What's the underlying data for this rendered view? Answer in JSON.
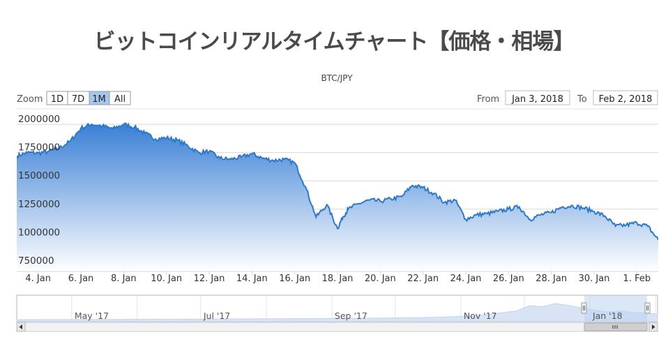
{
  "page_title": "ビットコインリアルタイムチャート【価格・相場】",
  "range_selector": {
    "zoom_label": "Zoom",
    "buttons": [
      {
        "label": "1D",
        "selected": false
      },
      {
        "label": "7D",
        "selected": false
      },
      {
        "label": "1M",
        "selected": true
      },
      {
        "label": "All",
        "selected": false
      }
    ],
    "from_label": "From",
    "from_value": "Jan 3, 2018",
    "to_label": "To",
    "to_value": "Feb 2, 2018"
  },
  "colors": {
    "line": "#2f78c8",
    "fill_top": "#3a7fd5",
    "fill_bottom": "#ffffff",
    "selected_button": "#a6c7ed",
    "navigator_mask": "#bcd3f0"
  },
  "chart_data": {
    "type": "area",
    "subtitle": "BTC/JPY",
    "xlabel": "",
    "ylabel": "",
    "x_ticks": [
      "4. Jan",
      "6. Jan",
      "8. Jan",
      "10. Jan",
      "12. Jan",
      "14. Jan",
      "16. Jan",
      "18. Jan",
      "20. Jan",
      "22. Jan",
      "24. Jan",
      "26. Jan",
      "28. Jan",
      "30. Jan",
      "1. Feb"
    ],
    "y_ticks": [
      "750000",
      "1000000",
      "1250000",
      "1500000",
      "1750000",
      "2000000"
    ],
    "y_tick_values": [
      750000,
      1000000,
      1250000,
      1500000,
      1750000,
      2000000
    ],
    "ylim": [
      700000,
      2050000
    ],
    "x_range": [
      "2018-01-03",
      "2018-02-02"
    ],
    "grid": true,
    "series": [
      {
        "values": [
          [
            "2018-01-03",
            1720000
          ],
          [
            "2018-01-03T12:00",
            1750000
          ],
          [
            "2018-01-04",
            1745000
          ],
          [
            "2018-01-04T12:00",
            1760000
          ],
          [
            "2018-01-05",
            1790000
          ],
          [
            "2018-01-05T12:00",
            1850000
          ],
          [
            "2018-01-06",
            1965000
          ],
          [
            "2018-01-06T12:00",
            2000000
          ],
          [
            "2018-01-07",
            1985000
          ],
          [
            "2018-01-07T12:00",
            1960000
          ],
          [
            "2018-01-08",
            2000000
          ],
          [
            "2018-01-08T12:00",
            1975000
          ],
          [
            "2018-01-09",
            1920000
          ],
          [
            "2018-01-09T12:00",
            1870000
          ],
          [
            "2018-01-10",
            1880000
          ],
          [
            "2018-01-10T12:00",
            1860000
          ],
          [
            "2018-01-11",
            1810000
          ],
          [
            "2018-01-11T12:00",
            1750000
          ],
          [
            "2018-01-12",
            1760000
          ],
          [
            "2018-01-12T12:00",
            1700000
          ],
          [
            "2018-01-13",
            1690000
          ],
          [
            "2018-01-13T12:00",
            1710000
          ],
          [
            "2018-01-14",
            1740000
          ],
          [
            "2018-01-14T12:00",
            1700000
          ],
          [
            "2018-01-15",
            1680000
          ],
          [
            "2018-01-15T12:00",
            1690000
          ],
          [
            "2018-01-16",
            1660000
          ],
          [
            "2018-01-16T12:00",
            1450000
          ],
          [
            "2018-01-17",
            1180000
          ],
          [
            "2018-01-17T12:00",
            1290000
          ],
          [
            "2018-01-18",
            1080000
          ],
          [
            "2018-01-18T06:00",
            1180000
          ],
          [
            "2018-01-18T12:00",
            1250000
          ],
          [
            "2018-01-19",
            1300000
          ],
          [
            "2018-01-19T12:00",
            1330000
          ],
          [
            "2018-01-20",
            1320000
          ],
          [
            "2018-01-20T12:00",
            1340000
          ],
          [
            "2018-01-21",
            1360000
          ],
          [
            "2018-01-21T12:00",
            1460000
          ],
          [
            "2018-01-22",
            1440000
          ],
          [
            "2018-01-22T12:00",
            1390000
          ],
          [
            "2018-01-23",
            1310000
          ],
          [
            "2018-01-23T12:00",
            1330000
          ],
          [
            "2018-01-24",
            1160000
          ],
          [
            "2018-01-24T12:00",
            1200000
          ],
          [
            "2018-01-25",
            1210000
          ],
          [
            "2018-01-25T12:00",
            1230000
          ],
          [
            "2018-01-26",
            1250000
          ],
          [
            "2018-01-26T12:00",
            1270000
          ],
          [
            "2018-01-27",
            1160000
          ],
          [
            "2018-01-27T12:00",
            1200000
          ],
          [
            "2018-01-28",
            1220000
          ],
          [
            "2018-01-28T12:00",
            1270000
          ],
          [
            "2018-01-29",
            1280000
          ],
          [
            "2018-01-29T12:00",
            1260000
          ],
          [
            "2018-01-30",
            1230000
          ],
          [
            "2018-01-30T12:00",
            1190000
          ],
          [
            "2018-01-31",
            1100000
          ],
          [
            "2018-01-31T12:00",
            1110000
          ],
          [
            "2018-02-01",
            1130000
          ],
          [
            "2018-02-01T12:00",
            1100000
          ],
          [
            "2018-02-02",
            980000
          ]
        ]
      }
    ],
    "navigator": {
      "labels": [
        "May '17",
        "Jul '17",
        "Sep '17",
        "Nov '17",
        "Jan '18"
      ],
      "label_dates": [
        "2017-05-01",
        "2017-07-01",
        "2017-09-01",
        "2017-11-01",
        "2018-01-01"
      ],
      "x_range": [
        "2017-04-05",
        "2018-02-02"
      ]
    }
  }
}
